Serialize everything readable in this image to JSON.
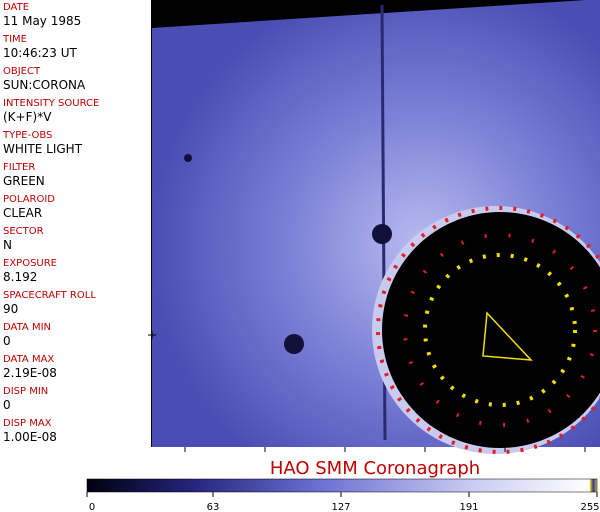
{
  "metadata": [
    {
      "label": "DATE",
      "value": "11 May 1985"
    },
    {
      "label": "TIME",
      "value": "10:46:23 UT"
    },
    {
      "label": "OBJECT",
      "value": "SUN:CORONA"
    },
    {
      "label": "INTENSITY SOURCE",
      "value": "(K+F)*V"
    },
    {
      "label": "TYPE-OBS",
      "value": "WHITE LIGHT"
    },
    {
      "label": "FILTER",
      "value": "GREEN"
    },
    {
      "label": "POLAROID",
      "value": "CLEAR"
    },
    {
      "label": "SECTOR",
      "value": "N"
    },
    {
      "label": "EXPOSURE",
      "value": "8.192"
    },
    {
      "label": "SPACECRAFT ROLL",
      "value": "90"
    },
    {
      "label": "DATA MIN",
      "value": "0"
    },
    {
      "label": "DATA MAX",
      "value": "2.19E-08"
    },
    {
      "label": "DISP MIN",
      "value": "0"
    },
    {
      "label": "DISP MAX",
      "value": "1.00E-08"
    }
  ],
  "footer": {
    "title": "HAO  SMM Coronagraph",
    "colorbar_ticks": [
      0,
      63,
      127,
      191,
      255
    ]
  }
}
